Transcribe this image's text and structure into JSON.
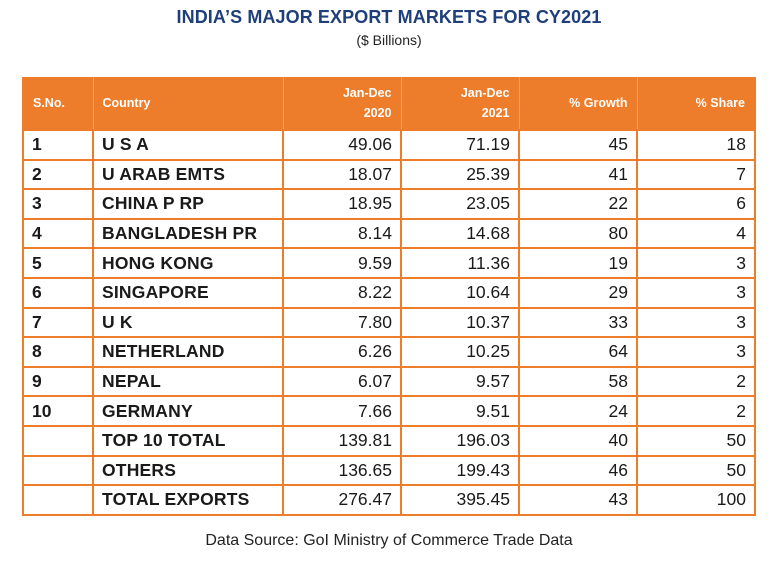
{
  "header": {
    "title": "INDIA’S MAJOR EXPORT MARKETS FOR CY2021",
    "subtitle": "($ Billions)"
  },
  "footer": {
    "source": "Data Source: GoI Ministry of Commerce Trade Data"
  },
  "colors": {
    "header_bg": "#ee7d2b",
    "title": "#1f3f7a"
  },
  "chart_data": {
    "type": "table",
    "title": "INDIA’S MAJOR EXPORT MARKETS FOR CY2021",
    "subtitle": "($ Billions)",
    "columns": [
      {
        "lines": [
          "S.No."
        ]
      },
      {
        "lines": [
          "Country"
        ]
      },
      {
        "lines": [
          "Jan-Dec",
          "2020"
        ]
      },
      {
        "lines": [
          "Jan-Dec",
          "2021"
        ]
      },
      {
        "lines": [
          "% Growth"
        ]
      },
      {
        "lines": [
          "% Share"
        ]
      }
    ],
    "rows": [
      [
        "1",
        "U S A",
        "49.06",
        "71.19",
        "45",
        "18"
      ],
      [
        "2",
        "U ARAB EMTS",
        "18.07",
        "25.39",
        "41",
        "7"
      ],
      [
        "3",
        "CHINA P RP",
        "18.95",
        "23.05",
        "22",
        "6"
      ],
      [
        "4",
        "BANGLADESH PR",
        "8.14",
        "14.68",
        "80",
        "4"
      ],
      [
        "5",
        "HONG KONG",
        "9.59",
        "11.36",
        "19",
        "3"
      ],
      [
        "6",
        "SINGAPORE",
        "8.22",
        "10.64",
        "29",
        "3"
      ],
      [
        "7",
        "U K",
        "7.80",
        "10.37",
        "33",
        "3"
      ],
      [
        "8",
        "NETHERLAND",
        "6.26",
        "10.25",
        "64",
        "3"
      ],
      [
        "9",
        "NEPAL",
        "6.07",
        "9.57",
        "58",
        "2"
      ],
      [
        "10",
        "GERMANY",
        "7.66",
        "9.51",
        "24",
        "2"
      ],
      [
        "",
        "TOP 10 TOTAL",
        "139.81",
        "196.03",
        "40",
        "50"
      ],
      [
        "",
        "OTHERS",
        "136.65",
        "199.43",
        "46",
        "50"
      ],
      [
        "",
        "TOTAL EXPORTS",
        "276.47",
        "395.45",
        "43",
        "100"
      ]
    ]
  }
}
